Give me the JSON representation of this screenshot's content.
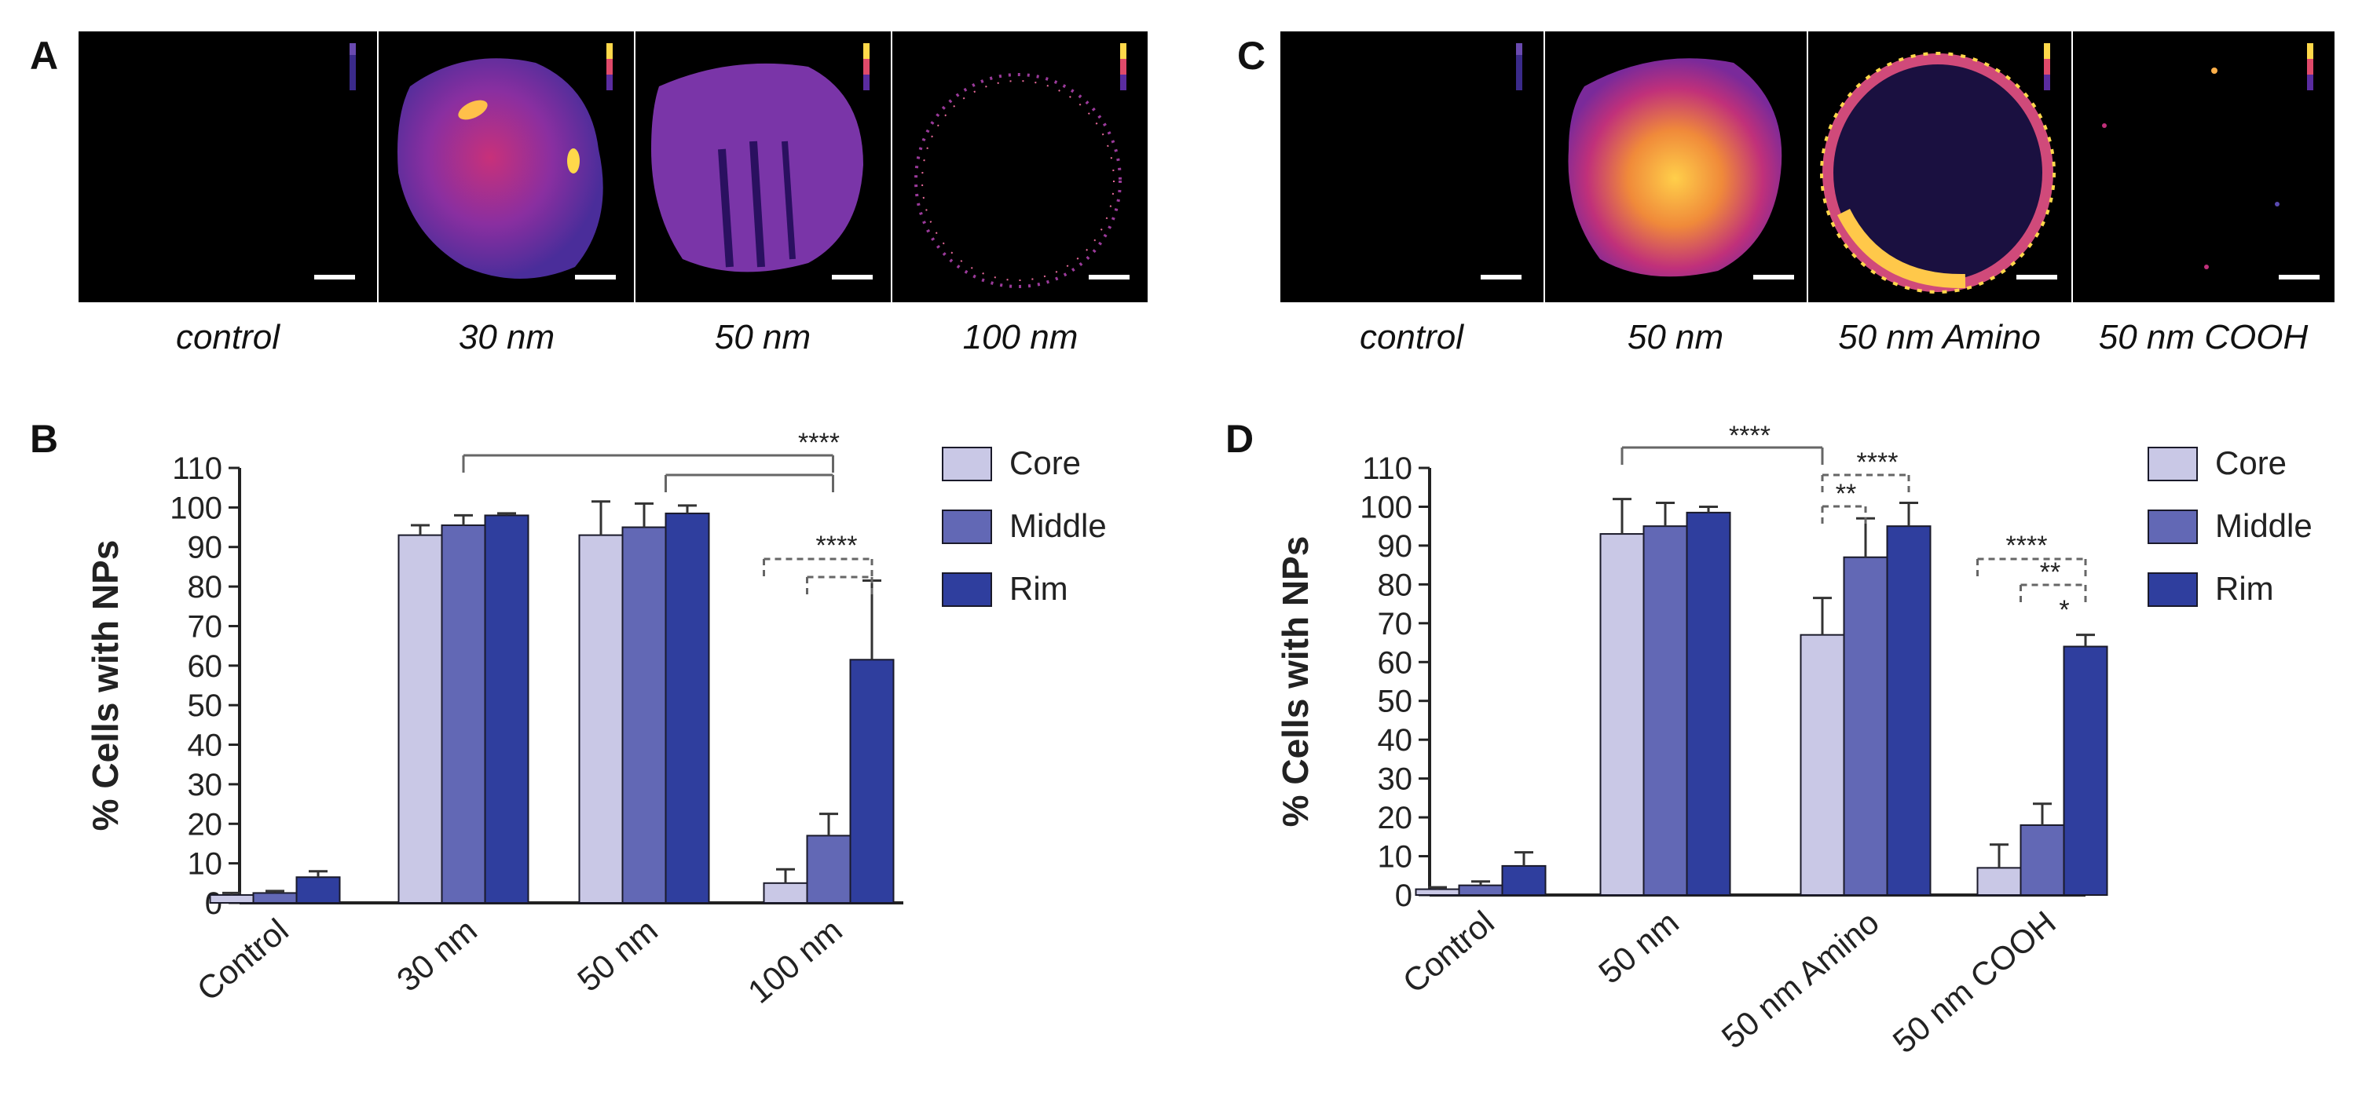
{
  "panel_letters": {
    "a": "A",
    "b": "B",
    "c": "C",
    "d": "D"
  },
  "panel_a": {
    "captions": [
      "control",
      "30 nm",
      "50 nm",
      "100 nm"
    ]
  },
  "panel_c": {
    "captions": [
      "control",
      "50 nm",
      "50 nm Amino",
      "50 nm COOH"
    ]
  },
  "colors": {
    "core": "#c9c8e6",
    "middle": "#6268b5",
    "rim": "#2f3e9e",
    "axis": "#222222"
  },
  "chart_data": [
    {
      "type": "bar",
      "panel": "B",
      "title": "",
      "xlabel": "",
      "ylabel": "% Cells with NPs",
      "ylim": [
        0,
        110
      ],
      "yticks": [
        "0",
        "10",
        "20",
        "30",
        "40",
        "50",
        "60",
        "70",
        "80",
        "90",
        "100",
        "110"
      ],
      "categories": [
        "Control",
        "30 nm",
        "50 nm",
        "100 nm"
      ],
      "legend_position": "right",
      "series": [
        {
          "name": "Core",
          "values": [
            2,
            93,
            93,
            5
          ],
          "errors": [
            0.5,
            2.5,
            8.5,
            3.5
          ]
        },
        {
          "name": "Middle",
          "values": [
            2.5,
            95.5,
            95,
            17
          ],
          "errors": [
            0.5,
            2.5,
            6,
            5.5
          ]
        },
        {
          "name": "Rim",
          "values": [
            6.5,
            98,
            98.5,
            61.5
          ],
          "errors": [
            1.5,
            0.5,
            2,
            20
          ]
        }
      ],
      "significance": [
        {
          "label": "****",
          "style": "solid"
        },
        {
          "label": "****",
          "style": "dashed"
        }
      ]
    },
    {
      "type": "bar",
      "panel": "D",
      "title": "",
      "xlabel": "",
      "ylabel": "% Cells with NPs",
      "ylim": [
        0,
        110
      ],
      "yticks": [
        "0",
        "10",
        "20",
        "30",
        "40",
        "50",
        "60",
        "70",
        "80",
        "90",
        "100",
        "110"
      ],
      "categories": [
        "Control",
        "50 nm",
        "50 nm Amino",
        "50 nm COOH"
      ],
      "legend_position": "right",
      "series": [
        {
          "name": "Core",
          "values": [
            1.5,
            93,
            67,
            7
          ],
          "errors": [
            0.5,
            9,
            9.5,
            6
          ]
        },
        {
          "name": "Middle",
          "values": [
            2.5,
            95,
            87,
            18
          ],
          "errors": [
            1,
            6,
            10,
            5.5
          ]
        },
        {
          "name": "Rim",
          "values": [
            7.5,
            98.5,
            95,
            64
          ],
          "errors": [
            3.5,
            1.5,
            6,
            3
          ]
        }
      ],
      "significance": [
        {
          "label": "****",
          "style": "solid"
        },
        {
          "label": "****",
          "style": "dashed"
        },
        {
          "label": "**",
          "style": "dashed"
        },
        {
          "label": "****",
          "style": "dashed"
        },
        {
          "label": "**",
          "style": "dashed"
        },
        {
          "label": "*",
          "style": "dashed"
        }
      ]
    }
  ]
}
